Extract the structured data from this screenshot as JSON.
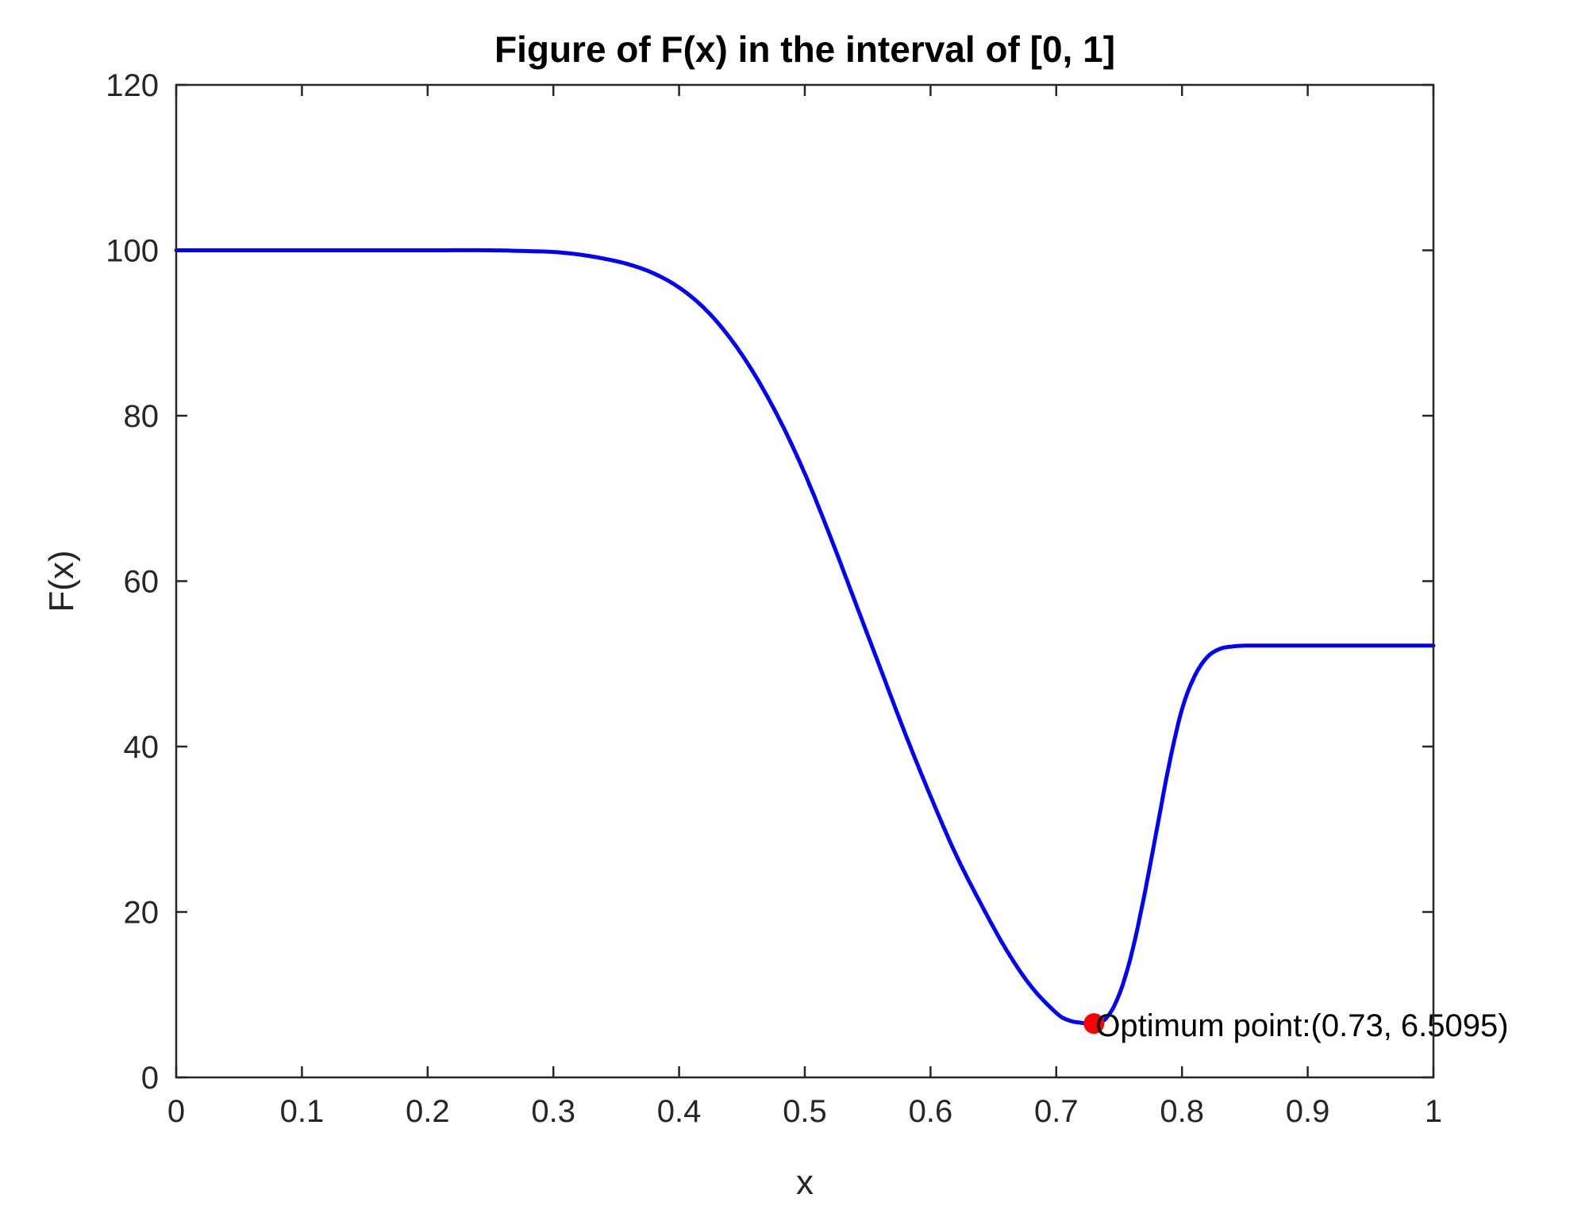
{
  "chart_data": {
    "type": "line",
    "title": "Figure of F(x) in the interval of [0, 1]",
    "xlabel": "x",
    "ylabel": "F(x)",
    "xlim": [
      0,
      1
    ],
    "ylim": [
      0,
      120
    ],
    "xticks": [
      0,
      0.1,
      0.2,
      0.3,
      0.4,
      0.5,
      0.6,
      0.7,
      0.8,
      0.9,
      1
    ],
    "xtick_labels": [
      "0",
      "0.1",
      "0.2",
      "0.3",
      "0.4",
      "0.5",
      "0.6",
      "0.7",
      "0.8",
      "0.9",
      "1"
    ],
    "yticks": [
      0,
      20,
      40,
      60,
      80,
      100,
      120
    ],
    "ytick_labels": [
      "0",
      "20",
      "40",
      "60",
      "80",
      "100",
      "120"
    ],
    "grid": false,
    "series": [
      {
        "color": "#0000ff",
        "x": [
          0,
          0.05,
          0.1,
          0.15,
          0.2,
          0.25,
          0.28,
          0.3,
          0.32,
          0.34,
          0.36,
          0.38,
          0.4,
          0.42,
          0.44,
          0.46,
          0.48,
          0.5,
          0.52,
          0.54,
          0.56,
          0.58,
          0.6,
          0.62,
          0.64,
          0.66,
          0.68,
          0.7,
          0.71,
          0.72,
          0.73,
          0.74,
          0.75,
          0.76,
          0.77,
          0.78,
          0.79,
          0.8,
          0.81,
          0.82,
          0.83,
          0.84,
          0.85,
          0.86,
          0.88,
          0.9,
          0.95,
          1.0
        ],
        "y": [
          100,
          100,
          100,
          100,
          100,
          100,
          99.9,
          99.8,
          99.5,
          99.0,
          98.3,
          97.2,
          95.5,
          93.0,
          89.5,
          85.0,
          79.5,
          73.0,
          65.5,
          57.5,
          49.5,
          41.5,
          34.0,
          27.0,
          21.0,
          15.5,
          11.0,
          7.8,
          6.9,
          6.6,
          6.5095,
          7.2,
          10.0,
          15.0,
          22.0,
          30.0,
          38.0,
          44.5,
          48.5,
          50.8,
          51.8,
          52.1,
          52.2,
          52.2,
          52.2,
          52.2,
          52.2,
          52.2
        ]
      }
    ],
    "annotations": [
      {
        "x": 0.73,
        "y": 6.5095,
        "text": "Optimum point:(0.73, 6.5095)",
        "marker_color": "#ff0000"
      }
    ]
  }
}
